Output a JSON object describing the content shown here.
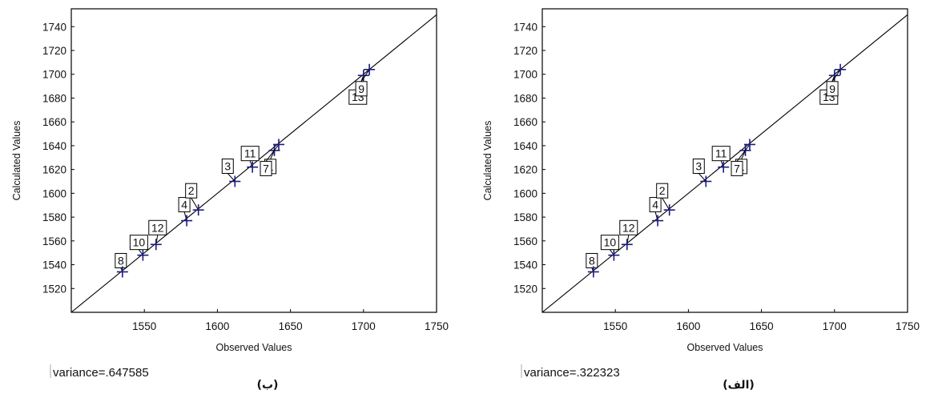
{
  "chart_data": [
    {
      "type": "scatter",
      "panel_label": "(ب)",
      "variance_text": "variance=.647585",
      "xlabel": "Observed Values",
      "ylabel": "Calculated Values",
      "xlim": [
        1500,
        1750
      ],
      "ylim": [
        1500,
        1755
      ],
      "xticks": [
        1550,
        1600,
        1650,
        1700,
        1750
      ],
      "yticks": [
        1520,
        1540,
        1560,
        1580,
        1600,
        1620,
        1640,
        1660,
        1680,
        1700,
        1720,
        1740
      ],
      "reference_line": "y = x",
      "marker_color": "#1a1a80",
      "points": [
        {
          "label": "8",
          "x": 1535,
          "y": 1534
        },
        {
          "label": "10",
          "x": 1549,
          "y": 1548
        },
        {
          "label": "12",
          "x": 1558,
          "y": 1557
        },
        {
          "label": "4",
          "x": 1579,
          "y": 1577
        },
        {
          "label": "2",
          "x": 1587,
          "y": 1586
        },
        {
          "label": "3",
          "x": 1612,
          "y": 1610
        },
        {
          "label": "11",
          "x": 1624,
          "y": 1622
        },
        {
          "label": "1",
          "x": 1639,
          "y": 1636
        },
        {
          "label": "7",
          "x": 1642,
          "y": 1641
        },
        {
          "label": "13",
          "x": 1700,
          "y": 1699
        },
        {
          "label": "9",
          "x": 1704,
          "y": 1704
        }
      ]
    },
    {
      "type": "scatter",
      "panel_label": "(الف)",
      "variance_text": "variance=.322323",
      "xlabel": "Observed Values",
      "ylabel": "Calculated Values",
      "xlim": [
        1500,
        1750
      ],
      "ylim": [
        1500,
        1755
      ],
      "xticks": [
        1550,
        1600,
        1650,
        1700,
        1750
      ],
      "yticks": [
        1520,
        1540,
        1560,
        1580,
        1600,
        1620,
        1640,
        1660,
        1680,
        1700,
        1720,
        1740
      ],
      "reference_line": "y = x",
      "marker_color": "#1a1a80",
      "points": [
        {
          "label": "8",
          "x": 1535,
          "y": 1534
        },
        {
          "label": "10",
          "x": 1549,
          "y": 1548
        },
        {
          "label": "12",
          "x": 1558,
          "y": 1557
        },
        {
          "label": "4",
          "x": 1579,
          "y": 1577
        },
        {
          "label": "2",
          "x": 1587,
          "y": 1586
        },
        {
          "label": "3",
          "x": 1612,
          "y": 1610
        },
        {
          "label": "11",
          "x": 1624,
          "y": 1622
        },
        {
          "label": "1",
          "x": 1639,
          "y": 1636
        },
        {
          "label": "7",
          "x": 1642,
          "y": 1641
        },
        {
          "label": "13",
          "x": 1700,
          "y": 1699
        },
        {
          "label": "9",
          "x": 1704,
          "y": 1704
        }
      ]
    }
  ]
}
